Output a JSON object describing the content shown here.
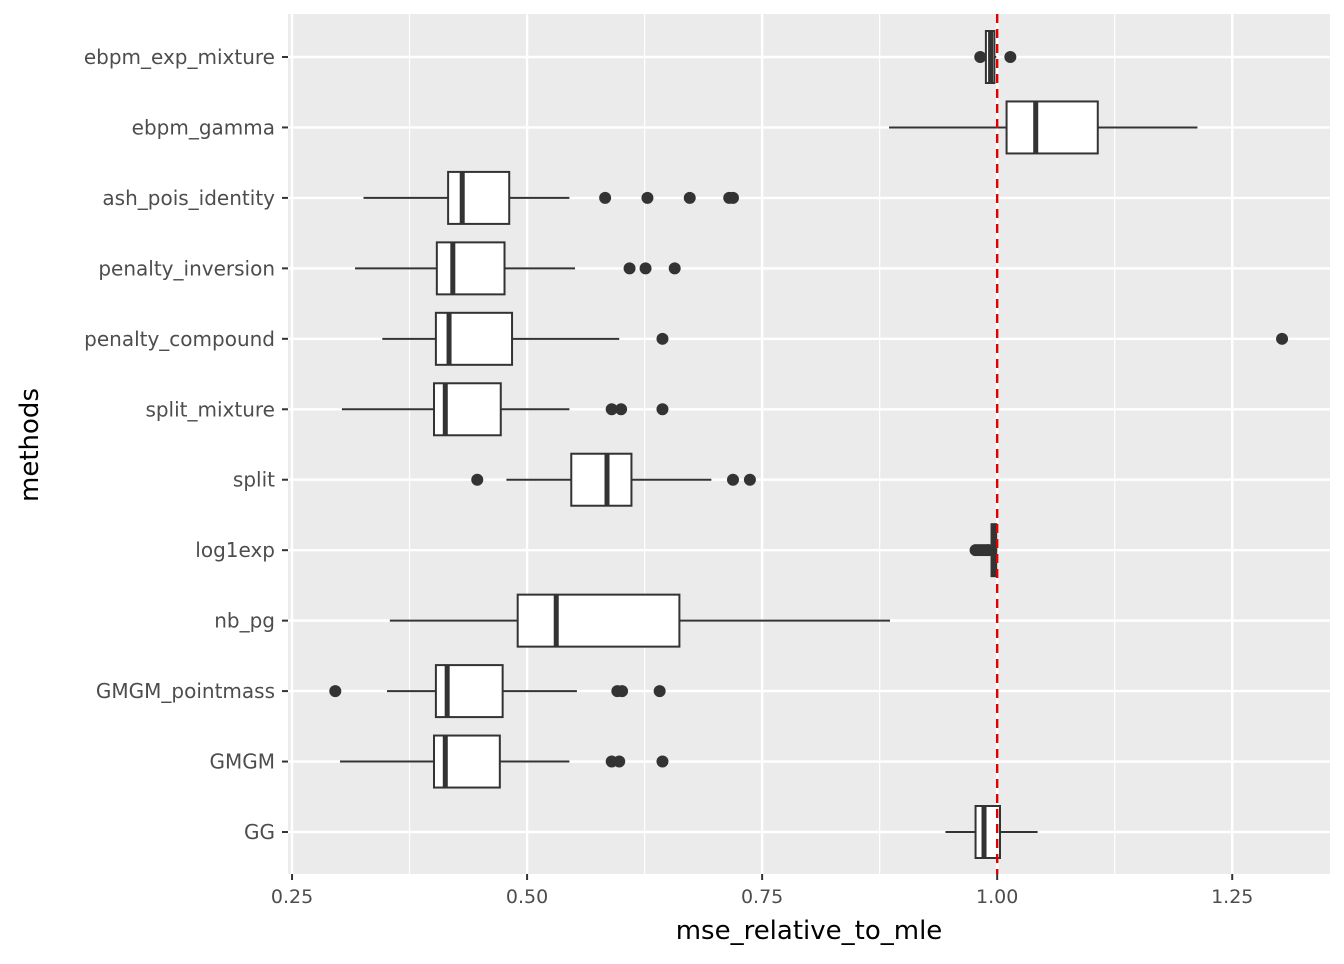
{
  "chart_data": {
    "type": "boxplot",
    "orientation": "horizontal",
    "xlabel": "mse_relative_to_mle",
    "ylabel": "methods",
    "xlim": [
      0.2457,
      1.354
    ],
    "xticks": [
      0.25,
      0.5,
      0.75,
      1.0,
      1.25
    ],
    "xtick_labels": [
      "0.25",
      "0.50",
      "0.75",
      "1.00",
      "1.25"
    ],
    "grid": true,
    "reference_line": {
      "x": 1.0,
      "style": "dashed",
      "color": "#e00000"
    },
    "box_color": "#333333",
    "panel_color": "#ebebeb",
    "categories": [
      "ebpm_exp_mixture",
      "ebpm_gamma",
      "ash_pois_identity",
      "penalty_inversion",
      "penalty_compound",
      "split_mixture",
      "split",
      "log1exp",
      "nb_pg",
      "GMGM_pointmass",
      "GMGM",
      "GG"
    ],
    "boxes": [
      {
        "name": "ebpm_exp_mixture",
        "lo": 0.988,
        "q1": 0.988,
        "med": 0.993,
        "q3": 0.997,
        "hi": 0.999,
        "outliers": [
          0.982,
          1.014
        ]
      },
      {
        "name": "ebpm_gamma",
        "lo": 0.885,
        "q1": 1.01,
        "med": 1.041,
        "q3": 1.107,
        "hi": 1.213,
        "outliers": []
      },
      {
        "name": "ash_pois_identity",
        "lo": 0.326,
        "q1": 0.416,
        "med": 0.431,
        "q3": 0.481,
        "hi": 0.545,
        "outliers": [
          0.583,
          0.628,
          0.673,
          0.715,
          0.719
        ]
      },
      {
        "name": "penalty_inversion",
        "lo": 0.317,
        "q1": 0.404,
        "med": 0.421,
        "q3": 0.476,
        "hi": 0.551,
        "outliers": [
          0.609,
          0.626,
          0.657
        ]
      },
      {
        "name": "penalty_compound",
        "lo": 0.346,
        "q1": 0.403,
        "med": 0.417,
        "q3": 0.484,
        "hi": 0.598,
        "outliers": [
          0.644,
          1.303
        ]
      },
      {
        "name": "split_mixture",
        "lo": 0.303,
        "q1": 0.401,
        "med": 0.413,
        "q3": 0.472,
        "hi": 0.545,
        "outliers": [
          0.59,
          0.6,
          0.644
        ]
      },
      {
        "name": "split",
        "lo": 0.478,
        "q1": 0.547,
        "med": 0.585,
        "q3": 0.611,
        "hi": 0.696,
        "outliers": [
          0.447,
          0.719,
          0.737
        ]
      },
      {
        "name": "log1exp",
        "lo": 0.994,
        "q1": 0.994,
        "med": 0.997,
        "q3": 0.999,
        "hi": 1.0,
        "outliers": [
          0.977,
          0.98,
          0.983,
          0.986,
          0.989,
          0.991
        ]
      },
      {
        "name": "nb_pg",
        "lo": 0.354,
        "q1": 0.49,
        "med": 0.531,
        "q3": 0.662,
        "hi": 0.886,
        "outliers": []
      },
      {
        "name": "GMGM_pointmass",
        "lo": 0.351,
        "q1": 0.403,
        "med": 0.415,
        "q3": 0.474,
        "hi": 0.553,
        "outliers": [
          0.296,
          0.596,
          0.601,
          0.641
        ]
      },
      {
        "name": "GMGM",
        "lo": 0.301,
        "q1": 0.401,
        "med": 0.413,
        "q3": 0.471,
        "hi": 0.545,
        "outliers": [
          0.59,
          0.598,
          0.644
        ]
      },
      {
        "name": "GG",
        "lo": 0.945,
        "q1": 0.977,
        "med": 0.986,
        "q3": 1.003,
        "hi": 1.043,
        "outliers": []
      }
    ]
  }
}
